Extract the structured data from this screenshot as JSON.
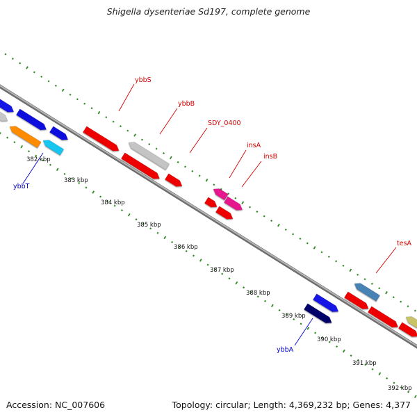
{
  "title": "Shigella dysenteriae Sd197, complete genome",
  "footer": {
    "accession": "Accession: NC_007606",
    "summary": "Topology: circular; Length: 4,369,232 bp; Genes: 4,377"
  },
  "colors": {
    "backbone": "#8a8a8a",
    "tick": "#2e8b22",
    "label_red": "#d10000",
    "label_blue": "#0000c8"
  },
  "kbp_labels": [
    "382 kbp",
    "383 kbp",
    "384 kbp",
    "385 kbp",
    "386 kbp",
    "387 kbp",
    "388 kbp",
    "389 kbp",
    "390 kbp",
    "391 kbp",
    "392 kbp"
  ],
  "gene_labels": [
    "ybbS",
    "ybbB",
    "SDY_0400",
    "insA",
    "insB",
    "tesA",
    "ybbT",
    "ybbA"
  ]
}
